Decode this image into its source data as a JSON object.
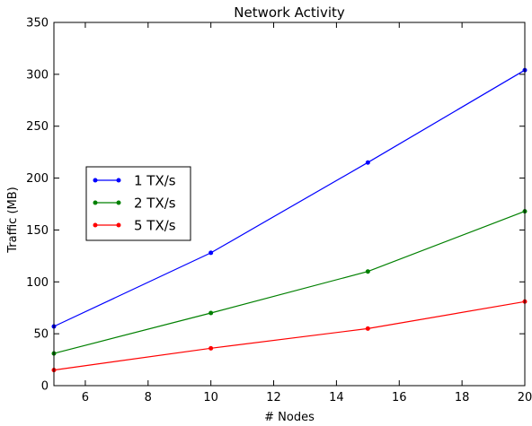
{
  "chart_data": {
    "type": "line",
    "title": "Network Activity",
    "xlabel": "# Nodes",
    "ylabel": "Traffic (MB)",
    "xlim": [
      5,
      20
    ],
    "ylim": [
      0,
      350
    ],
    "x": [
      5,
      10,
      15,
      20
    ],
    "xticks": [
      6,
      8,
      10,
      12,
      14,
      16,
      18,
      20
    ],
    "yticks": [
      0,
      50,
      100,
      150,
      200,
      250,
      300,
      350
    ],
    "grid": false,
    "legend_position": "center-left",
    "series": [
      {
        "name": "1 TX/s",
        "color": "#0000ff",
        "values": [
          57,
          128,
          215,
          304
        ]
      },
      {
        "name": "2 TX/s",
        "color": "#008000",
        "values": [
          31,
          70,
          110,
          168
        ]
      },
      {
        "name": "5 TX/s",
        "color": "#ff0000",
        "values": [
          15,
          36,
          55,
          81
        ]
      }
    ]
  }
}
